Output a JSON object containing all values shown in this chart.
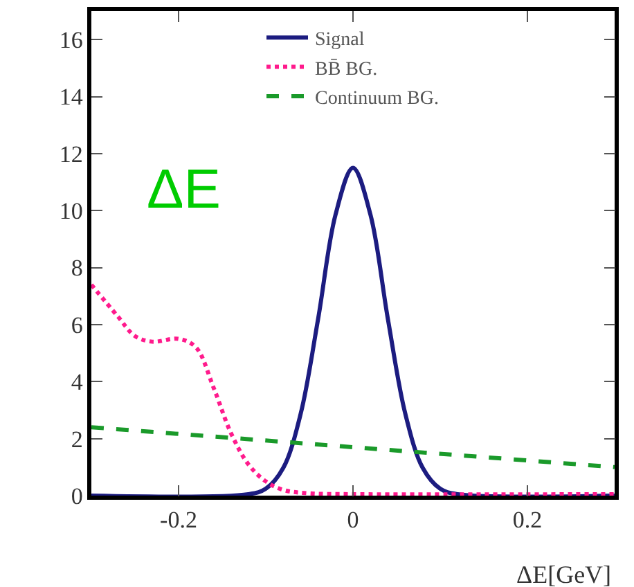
{
  "chart_data": {
    "type": "line",
    "xlabel": "ΔE[GeV]",
    "xlim": [
      -0.3,
      0.3
    ],
    "xticks": [
      -0.2,
      0,
      0.2
    ],
    "ylim": [
      0,
      17
    ],
    "yticks": [
      0,
      2,
      4,
      6,
      8,
      10,
      12,
      14,
      16
    ],
    "legend": "top",
    "annotations": [
      "ΔE"
    ],
    "series": [
      {
        "name": "Signal",
        "color": "#1c1c80",
        "line_style": "solid",
        "x": [
          -0.3,
          -0.12,
          -0.1,
          -0.08,
          -0.06,
          -0.04,
          -0.02,
          0,
          0.02,
          0.04,
          0.06,
          0.08,
          0.1,
          0.12,
          0.3
        ],
        "values": [
          0,
          0.05,
          0.24,
          0.97,
          2.87,
          6.2,
          9.86,
          11.5,
          9.86,
          6.2,
          2.87,
          0.97,
          0.24,
          0.05,
          0
        ]
      },
      {
        "name": "BB̄ BG.",
        "color": "#ff1a8c",
        "line_style": "dotted",
        "x": [
          -0.3,
          -0.27,
          -0.25,
          -0.23,
          -0.2,
          -0.18,
          -0.16,
          -0.14,
          -0.12,
          -0.1,
          -0.08,
          -0.05,
          0,
          0.3
        ],
        "values": [
          7.4,
          6.3,
          5.6,
          5.4,
          5.5,
          5.2,
          3.8,
          2.2,
          1.1,
          0.5,
          0.2,
          0.08,
          0.05,
          0.05
        ]
      },
      {
        "name": "Continuum BG.",
        "color": "#1a9a2a",
        "line_style": "dashed",
        "x": [
          -0.3,
          0.3
        ],
        "values": [
          2.4,
          1.0
        ]
      }
    ]
  }
}
